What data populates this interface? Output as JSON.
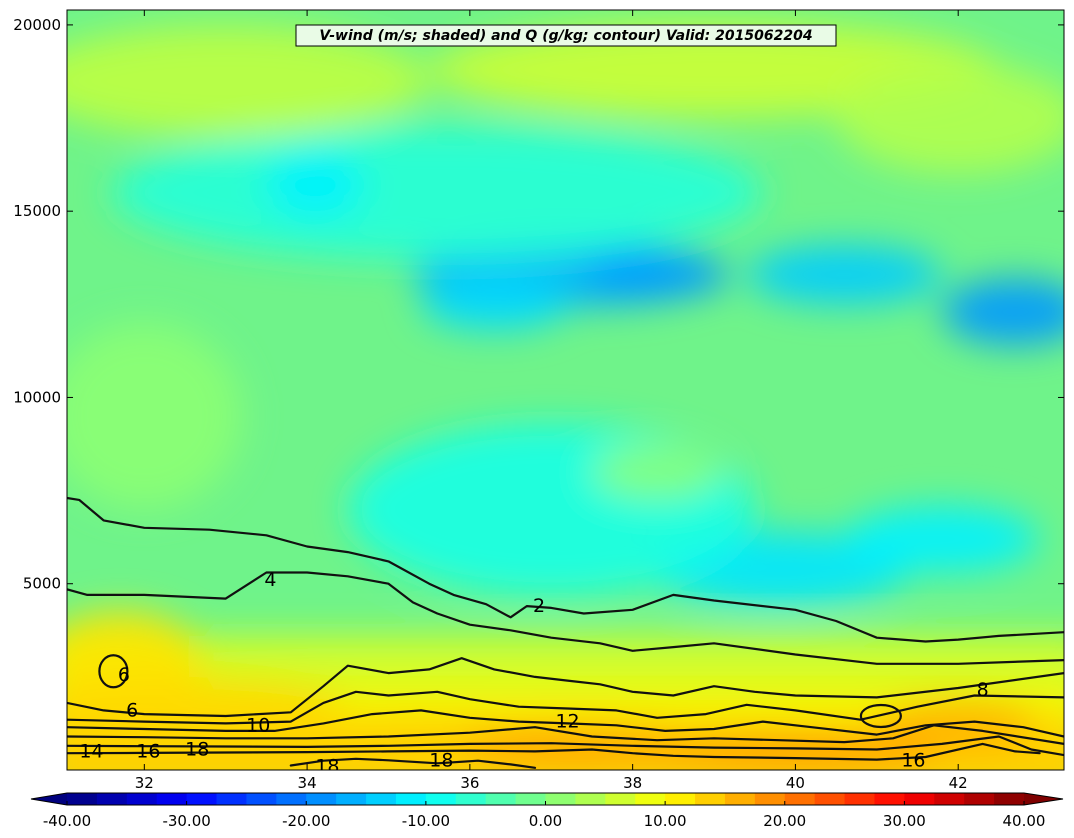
{
  "chart_data": {
    "type": "heatmap",
    "title": "V-wind (m/s; shaded) and Q (g/kg; contour) Valid: 2015062204",
    "xlabel": "",
    "ylabel": "",
    "xlim": [
      31.05,
      43.3
    ],
    "ylim": [
      0,
      20400
    ],
    "x_ticks": [
      32,
      34,
      36,
      38,
      40,
      42
    ],
    "x_tick_labels": [
      "32",
      "34",
      "36",
      "38",
      "40",
      "42"
    ],
    "y_ticks": [
      5000,
      10000,
      15000,
      20000
    ],
    "y_tick_labels": [
      "5000",
      "10000",
      "15000",
      "20000"
    ],
    "shaded_field": "V-wind (m/s)",
    "colorbar": {
      "range": [
        -40,
        40
      ],
      "extend": "both",
      "tick_values": [
        -40,
        -30,
        -20,
        -10,
        0,
        10,
        20,
        30,
        40
      ],
      "tick_labels": [
        "-40.00",
        "-30.00",
        "-20.00",
        "-10.00",
        "0.00",
        "10.00",
        "20.00",
        "30.00",
        "40.00"
      ]
    },
    "contour_field": "Q (g/kg)",
    "contour_lines": [
      {
        "value": 2,
        "points": [
          [
            31.05,
            7300
          ],
          [
            31.2,
            7250
          ],
          [
            31.5,
            6700
          ],
          [
            32,
            6500
          ],
          [
            32.8,
            6450
          ],
          [
            33.5,
            6300
          ],
          [
            34,
            6000
          ],
          [
            34.5,
            5850
          ],
          [
            35,
            5600
          ],
          [
            35.5,
            5000
          ],
          [
            35.8,
            4700
          ],
          [
            36.2,
            4450
          ],
          [
            36.5,
            4100
          ],
          [
            36.7,
            4400
          ],
          [
            37,
            4350
          ],
          [
            37.4,
            4200
          ],
          [
            38,
            4300
          ],
          [
            38.5,
            4700
          ],
          [
            39,
            4550
          ],
          [
            40,
            4300
          ],
          [
            40.5,
            4000
          ],
          [
            41,
            3550
          ],
          [
            41.6,
            3450
          ],
          [
            42,
            3500
          ],
          [
            42.5,
            3600
          ],
          [
            43.3,
            3700
          ]
        ]
      },
      {
        "value": 4,
        "points": [
          [
            31.05,
            4850
          ],
          [
            31.3,
            4700
          ],
          [
            32,
            4700
          ],
          [
            33,
            4600
          ],
          [
            33.5,
            5300
          ],
          [
            34,
            5300
          ],
          [
            34.5,
            5200
          ],
          [
            35,
            5000
          ],
          [
            35.3,
            4500
          ],
          [
            35.6,
            4200
          ],
          [
            36,
            3900
          ],
          [
            36.5,
            3750
          ],
          [
            37,
            3550
          ],
          [
            37.6,
            3400
          ],
          [
            38,
            3200
          ],
          [
            38.5,
            3300
          ],
          [
            39,
            3400
          ],
          [
            40,
            3100
          ],
          [
            41,
            2850
          ],
          [
            42,
            2850
          ],
          [
            43.3,
            2950
          ]
        ]
      },
      {
        "value": 6,
        "points": [
          [
            31.05,
            1800
          ],
          [
            31.5,
            1600
          ],
          [
            32,
            1500
          ],
          [
            33,
            1450
          ],
          [
            33.8,
            1550
          ],
          [
            34.2,
            2250
          ],
          [
            34.5,
            2800
          ],
          [
            35,
            2600
          ],
          [
            35.5,
            2700
          ],
          [
            35.9,
            3000
          ],
          [
            36.3,
            2700
          ],
          [
            36.8,
            2500
          ],
          [
            37.2,
            2400
          ],
          [
            37.6,
            2300
          ],
          [
            38,
            2100
          ],
          [
            38.5,
            2000
          ],
          [
            39,
            2250
          ],
          [
            39.5,
            2100
          ],
          [
            40,
            2000
          ],
          [
            41,
            1950
          ],
          [
            42,
            2200
          ],
          [
            43.3,
            2600
          ]
        ]
      },
      {
        "value": 8,
        "points": [
          [
            31.05,
            1350
          ],
          [
            32,
            1300
          ],
          [
            33,
            1250
          ],
          [
            33.8,
            1300
          ],
          [
            34.2,
            1800
          ],
          [
            34.6,
            2100
          ],
          [
            35,
            2000
          ],
          [
            35.6,
            2100
          ],
          [
            36,
            1900
          ],
          [
            36.6,
            1700
          ],
          [
            37.2,
            1650
          ],
          [
            37.8,
            1600
          ],
          [
            38.3,
            1400
          ],
          [
            38.9,
            1500
          ],
          [
            39.4,
            1750
          ],
          [
            40,
            1600
          ],
          [
            40.8,
            1350
          ],
          [
            41.5,
            1700
          ],
          [
            42.2,
            2000
          ],
          [
            43.3,
            1950
          ]
        ]
      },
      {
        "value": 10,
        "points": [
          [
            31.05,
            1150
          ],
          [
            32,
            1100
          ],
          [
            33,
            1050
          ],
          [
            33.6,
            1050
          ],
          [
            34.2,
            1250
          ],
          [
            34.8,
            1500
          ],
          [
            35.4,
            1600
          ],
          [
            36,
            1400
          ],
          [
            36.6,
            1300
          ],
          [
            37.2,
            1250
          ],
          [
            37.8,
            1200
          ],
          [
            38.4,
            1050
          ],
          [
            39,
            1100
          ],
          [
            39.6,
            1300
          ],
          [
            40.2,
            1150
          ],
          [
            41,
            950
          ],
          [
            41.6,
            1200
          ],
          [
            42.2,
            1300
          ],
          [
            42.8,
            1150
          ],
          [
            43.3,
            900
          ]
        ]
      },
      {
        "value": 12,
        "points": [
          [
            31.05,
            900
          ],
          [
            32,
            880
          ],
          [
            33,
            850
          ],
          [
            34,
            850
          ],
          [
            35,
            900
          ],
          [
            36,
            1000
          ],
          [
            36.8,
            1150
          ],
          [
            37.5,
            900
          ],
          [
            38.3,
            800
          ],
          [
            39,
            850
          ],
          [
            39.8,
            800
          ],
          [
            40.6,
            750
          ],
          [
            41.2,
            850
          ],
          [
            41.7,
            1200
          ],
          [
            42.3,
            1050
          ],
          [
            43.3,
            700
          ]
        ]
      },
      {
        "value": 14,
        "points": [
          [
            31.05,
            650
          ],
          [
            32,
            640
          ],
          [
            33,
            630
          ],
          [
            34,
            620
          ],
          [
            35,
            650
          ],
          [
            36,
            700
          ],
          [
            37,
            720
          ],
          [
            38,
            650
          ],
          [
            39,
            600
          ],
          [
            40,
            580
          ],
          [
            41,
            550
          ],
          [
            41.8,
            700
          ],
          [
            42.5,
            900
          ],
          [
            42.9,
            550
          ],
          [
            43.3,
            400
          ]
        ]
      },
      {
        "value": 16,
        "points": [
          [
            31.05,
            450
          ],
          [
            32,
            460
          ],
          [
            33,
            470
          ],
          [
            34,
            480
          ],
          [
            35,
            500
          ],
          [
            36,
            520
          ],
          [
            36.8,
            500
          ],
          [
            37.5,
            550
          ],
          [
            38,
            450
          ],
          [
            38.5,
            380
          ],
          [
            39,
            350
          ],
          [
            40,
            320
          ],
          [
            41,
            280
          ],
          [
            41.6,
            350
          ],
          [
            42.3,
            700
          ],
          [
            42.7,
            500
          ],
          [
            43,
            450
          ]
        ]
      },
      {
        "value": 18,
        "points": [
          [
            33.8,
            120
          ],
          [
            34.2,
            250
          ],
          [
            34.6,
            300
          ],
          [
            35,
            260
          ],
          [
            35.6,
            180
          ],
          [
            36.1,
            250
          ],
          [
            36.5,
            150
          ],
          [
            36.8,
            60
          ]
        ]
      }
    ],
    "contour_labels": [
      {
        "text": "2",
        "x": 36.85,
        "y": 4400
      },
      {
        "text": "4",
        "x": 33.55,
        "y": 5100
      },
      {
        "text": "6",
        "x": 31.75,
        "y": 2550
      },
      {
        "text": "6",
        "x": 31.85,
        "y": 1600
      },
      {
        "text": "8",
        "x": 42.3,
        "y": 2150
      },
      {
        "text": "10",
        "x": 33.4,
        "y": 1200
      },
      {
        "text": "12",
        "x": 37.2,
        "y": 1300
      },
      {
        "text": "14",
        "x": 31.35,
        "y": 500
      },
      {
        "text": "16",
        "x": 32.05,
        "y": 500
      },
      {
        "text": "18",
        "x": 32.65,
        "y": 550
      },
      {
        "text": "18",
        "x": 34.25,
        "y": 100
      },
      {
        "text": "18",
        "x": 35.65,
        "y": 250
      },
      {
        "text": "16",
        "x": 41.45,
        "y": 250
      }
    ],
    "shaded_blobs": [
      {
        "x": 37.2,
        "y": 13300,
        "rx": 1.9,
        "ry": 900,
        "value": -16
      },
      {
        "x": 40.6,
        "y": 13300,
        "rx": 1.2,
        "ry": 800,
        "value": -14
      },
      {
        "x": 42.7,
        "y": 12300,
        "rx": 0.9,
        "ry": 900,
        "value": -18
      },
      {
        "x": 36.3,
        "y": 12500,
        "rx": 0.9,
        "ry": 700,
        "value": -13
      },
      {
        "x": 38.3,
        "y": 13300,
        "rx": 0.9,
        "ry": 600,
        "value": -18
      },
      {
        "x": 39.8,
        "y": 5400,
        "rx": 1.6,
        "ry": 1000,
        "value": -12
      },
      {
        "x": 41.8,
        "y": 6200,
        "rx": 1.2,
        "ry": 900,
        "value": -11
      },
      {
        "x": 37.0,
        "y": 7000,
        "rx": 2.5,
        "ry": 2300,
        "value": -8
      },
      {
        "x": 35.6,
        "y": 15500,
        "rx": 4.0,
        "ry": 1800,
        "value": -7
      },
      {
        "x": 34.1,
        "y": 15700,
        "rx": 0.6,
        "ry": 900,
        "value": -11
      },
      {
        "x": 39.0,
        "y": 18800,
        "rx": 3.5,
        "ry": 1300,
        "value": 6
      },
      {
        "x": 33.0,
        "y": 18500,
        "rx": 2.5,
        "ry": 1500,
        "value": 5
      },
      {
        "x": 42.0,
        "y": 17500,
        "rx": 1.5,
        "ry": 1500,
        "value": 4
      },
      {
        "x": 32.0,
        "y": 9500,
        "rx": 1.2,
        "ry": 2500,
        "value": 1
      },
      {
        "x": 38.3,
        "y": 8000,
        "rx": 0.8,
        "ry": 700,
        "value": 1
      },
      {
        "x": 31.7,
        "y": 3000,
        "rx": 1.0,
        "ry": 1300,
        "value": 12
      },
      {
        "x": 32.5,
        "y": 1800,
        "rx": 2.0,
        "ry": 700,
        "value": 13
      },
      {
        "x": 35.5,
        "y": 900,
        "rx": 1.5,
        "ry": 500,
        "value": 14
      },
      {
        "x": 37.3,
        "y": 700,
        "rx": 1.4,
        "ry": 600,
        "value": 17
      },
      {
        "x": 40.0,
        "y": 500,
        "rx": 1.8,
        "ry": 400,
        "value": 19
      },
      {
        "x": 42.0,
        "y": 1200,
        "rx": 1.0,
        "ry": 700,
        "value": 16
      }
    ]
  }
}
